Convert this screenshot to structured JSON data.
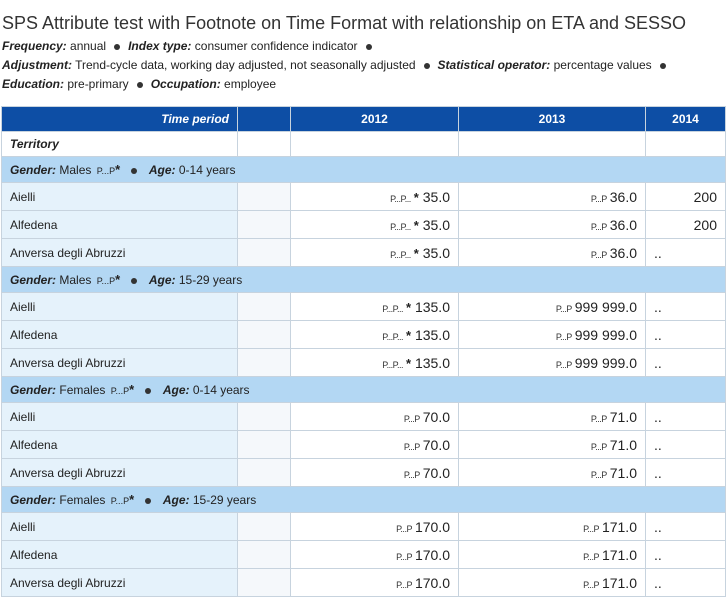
{
  "title": "SPS Attribute test with Footnote on Time Format with relationship on ETA and SESSO",
  "meta": [
    [
      {
        "k": "Frequency:",
        "v": "annual"
      },
      {
        "k": "Index type:",
        "v": "consumer confidence indicator"
      }
    ],
    [
      {
        "k": "Adjustment:",
        "v": "Trend-cycle data, working day adjusted, not seasonally adjusted"
      },
      {
        "k": "Statistical operator:",
        "v": "percentage values"
      }
    ],
    [
      {
        "k": "Education:",
        "v": "pre-primary"
      },
      {
        "k": "Occupation:",
        "v": "employee"
      }
    ]
  ],
  "header": {
    "time_period": "Time period",
    "years": [
      "2012",
      "2013",
      "2014"
    ],
    "territory": "Territory"
  },
  "labels": {
    "gender": "Gender:",
    "age": "Age:",
    "star": "*",
    "flag_a": "P...P...",
    "flag_b": "P...P"
  },
  "groups": [
    {
      "gender": "Males",
      "age": "0-14 years",
      "rows": [
        {
          "name": "Aielli",
          "v2012": "35.0",
          "v2013": "36.0",
          "v2014": "200"
        },
        {
          "name": "Alfedena",
          "v2012": "35.0",
          "v2013": "36.0",
          "v2014": "200"
        },
        {
          "name": "Anversa degli Abruzzi",
          "v2012": "35.0",
          "v2013": "36.0",
          "v2014": ".."
        }
      ]
    },
    {
      "gender": "Males",
      "age": "15-29 years",
      "rows": [
        {
          "name": "Aielli",
          "v2012": "135.0",
          "v2013": "999 999.0",
          "v2014": ".."
        },
        {
          "name": "Alfedena",
          "v2012": "135.0",
          "v2013": "999 999.0",
          "v2014": ".."
        },
        {
          "name": "Anversa degli Abruzzi",
          "v2012": "135.0",
          "v2013": "999 999.0",
          "v2014": ".."
        }
      ]
    },
    {
      "gender": "Females",
      "age": "0-14 years",
      "rows": [
        {
          "name": "Aielli",
          "v2012": "70.0",
          "v2013": "71.0",
          "v2014": ".."
        },
        {
          "name": "Alfedena",
          "v2012": "70.0",
          "v2013": "71.0",
          "v2014": ".."
        },
        {
          "name": "Anversa degli Abruzzi",
          "v2012": "70.0",
          "v2013": "71.0",
          "v2014": ".."
        }
      ]
    },
    {
      "gender": "Females",
      "age": "15-29 years",
      "rows": [
        {
          "name": "Aielli",
          "v2012": "170.0",
          "v2013": "171.0",
          "v2014": ".."
        },
        {
          "name": "Alfedena",
          "v2012": "170.0",
          "v2013": "171.0",
          "v2014": ".."
        },
        {
          "name": "Anversa degli Abruzzi",
          "v2012": "170.0",
          "v2013": "171.0",
          "v2014": ".."
        }
      ]
    }
  ]
}
